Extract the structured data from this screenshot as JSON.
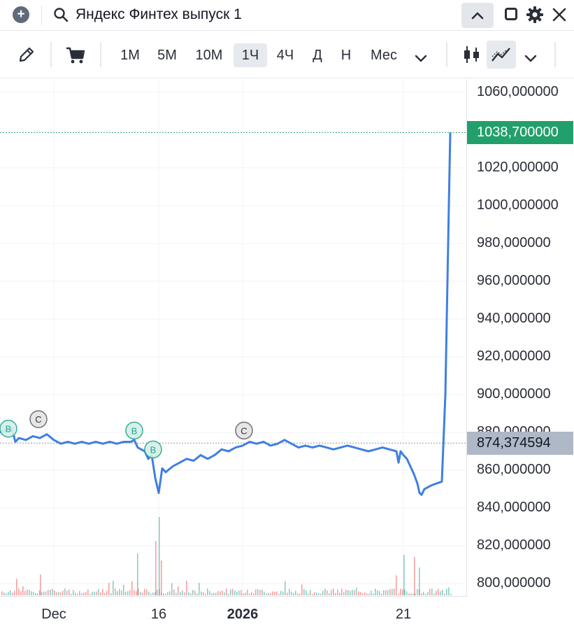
{
  "titlebar": {
    "add_icon": "plus-circle-icon",
    "title": "Яндекс Финтех выпуск 1",
    "icons": [
      "search-icon",
      "chevron-up-icon",
      "square-icon",
      "gear-icon",
      "close-icon"
    ]
  },
  "toolbar": {
    "timeframes": [
      "1М",
      "5М",
      "10М",
      "1Ч",
      "4Ч",
      "Д",
      "Н",
      "Мес"
    ],
    "active_timeframe": "1Ч",
    "icons": [
      "pencil-icon",
      "cart-icon",
      "chevron-down-icon",
      "candles-icon",
      "line-chart-icon",
      "chevron-down-icon"
    ]
  },
  "chart_data": {
    "type": "line",
    "colors": {
      "line": "#3f7fe2",
      "last_price": "#22a06b",
      "avg_price": "#aeb8c6",
      "marker_buy": "#26a69a",
      "marker_close": "#666666",
      "volume_up": "#26a69a",
      "volume_down": "#ef5350"
    },
    "y_ticks": [
      "1060,000000",
      "1020,000000",
      "1000,000000",
      "980,000000",
      "960,000000",
      "940,000000",
      "920,000000",
      "900,000000",
      "880,000000",
      "860,000000",
      "840,000000",
      "820,000000",
      "800,000000"
    ],
    "y_tick_values": [
      1060,
      1020,
      1000,
      980,
      960,
      940,
      920,
      900,
      880,
      860,
      840,
      820,
      800
    ],
    "ylim": [
      793,
      1067
    ],
    "x_ticks": [
      {
        "label": "Dec",
        "day": 1,
        "bold": false
      },
      {
        "label": "16",
        "day": 16,
        "bold": false
      },
      {
        "label": "2026",
        "day": 28,
        "bold": true
      },
      {
        "label": "21",
        "day": 51,
        "bold": false
      }
    ],
    "xlim": [
      -6.7,
      60.0
    ],
    "last_price": {
      "value": 1038.7,
      "label": "1038,700000"
    },
    "avg_price": {
      "value": 874.374594,
      "label": "874,374594"
    },
    "series": [
      {
        "x": [
          -6.7,
          -5,
          -4.5,
          -4,
          -3,
          -2,
          -1,
          0,
          1,
          2,
          3,
          4,
          5,
          6,
          7,
          8,
          9,
          10,
          11,
          12,
          12.5,
          13,
          13.5,
          14,
          14.5,
          15,
          15.5,
          16,
          16.5,
          17,
          18,
          19,
          20,
          21,
          22,
          23,
          24,
          25,
          26,
          27,
          28,
          29,
          30,
          31,
          32,
          33,
          34,
          35,
          36,
          37,
          38,
          39,
          40,
          41,
          42,
          43,
          44,
          45,
          46,
          47,
          48,
          49,
          50,
          50.3,
          50.6,
          51,
          51.5,
          52,
          52.5,
          53,
          53.3,
          53.6,
          54,
          55,
          56.5,
          57,
          57.5,
          57.7
        ],
        "values": [
          880,
          882,
          875,
          877,
          876,
          878,
          877,
          879,
          876,
          874,
          875,
          874,
          875,
          874,
          875,
          874,
          875,
          874,
          875,
          875,
          876,
          872,
          871,
          870,
          866,
          868,
          856,
          848,
          861,
          859,
          862,
          864,
          866,
          865,
          868,
          866,
          868,
          871,
          870,
          872,
          873,
          875,
          874,
          875,
          873,
          874,
          876,
          874,
          872,
          873,
          872,
          873,
          872,
          871,
          872,
          873,
          872,
          871,
          870,
          871,
          872,
          871,
          870,
          864,
          870,
          868,
          866,
          862,
          858,
          853,
          848,
          847,
          850,
          852,
          854,
          900,
          1000,
          1038.7
        ]
      }
    ],
    "markers": [
      {
        "type": "buy",
        "label": "B",
        "day": -5.5,
        "value": 882
      },
      {
        "type": "close",
        "label": "C",
        "day": -1.2,
        "value": 887
      },
      {
        "type": "buy",
        "label": "B",
        "day": 12.5,
        "value": 881
      },
      {
        "type": "buy",
        "label": "B",
        "day": 15.2,
        "value": 871
      },
      {
        "type": "close",
        "label": "C",
        "day": 28.2,
        "value": 881
      }
    ]
  }
}
